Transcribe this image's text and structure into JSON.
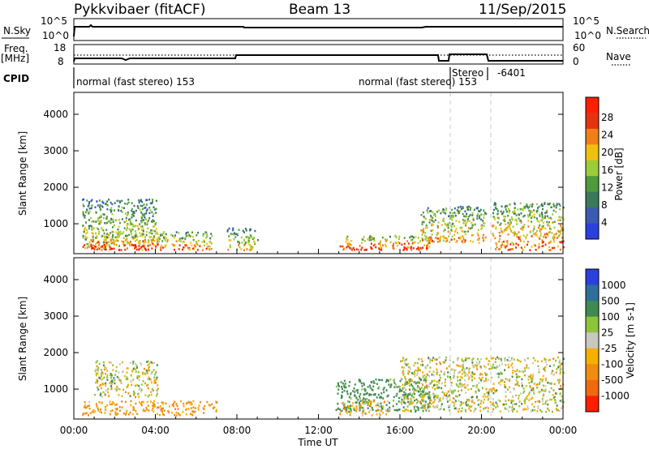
{
  "header": {
    "station": "Pykkvibaer (fitACF)",
    "beam": "Beam 13",
    "date": "11/Sep/2015"
  },
  "strips": {
    "nsky_label": "N.Sky",
    "nsearch_label": "N.Search",
    "noise_ticks_left": [
      "10^5",
      "10^0"
    ],
    "noise_ticks_right": [
      "10^5",
      "10^0"
    ],
    "freq_label": "Freq.",
    "freq_unit": "[MHz]",
    "freq_ticks": [
      "18",
      "8"
    ],
    "nave_label": "Nave",
    "nave_ticks": [
      "60",
      "0"
    ],
    "cpid_label": "CPID",
    "cpid_segments": [
      {
        "label": "normal (fast stereo) 153"
      },
      {
        "label": "normal (fast stereo) 153"
      },
      {
        "label": "Stereo"
      },
      {
        "label": "-6401"
      }
    ]
  },
  "time_axis": {
    "label": "Time UT",
    "ticks": [
      "00:00",
      "04:00",
      "08:00",
      "12:00",
      "16:00",
      "20:00",
      "00:00"
    ],
    "range_hours": [
      0,
      24
    ]
  },
  "colors": {
    "power": [
      "#2b3fe0",
      "#3a5cb0",
      "#3a7a5a",
      "#4e9a3c",
      "#9ccc3a",
      "#f0c010",
      "#f07e1a",
      "#e53310",
      "#ff1f00"
    ],
    "velocity": [
      "#2b3fe0",
      "#2f6e9a",
      "#3f8a52",
      "#8ec43a",
      "#c8c8c0",
      "#f5b000",
      "#f08c10",
      "#ee6a10",
      "#ff1e00"
    ]
  },
  "chart_data": [
    {
      "type": "heatmap",
      "title": "",
      "xlabel": "",
      "ylabel": "Slant Range [km]",
      "xlim": [
        0,
        24
      ],
      "ylim": [
        180,
        4600
      ],
      "yticks": [
        "1000",
        "2000",
        "3000",
        "4000"
      ],
      "colorbar": {
        "label": "Power [dB]",
        "ticks": [
          "4",
          "8",
          "12",
          "16",
          "20",
          "24",
          "28"
        ],
        "range": [
          0,
          30
        ]
      },
      "regions": [
        {
          "t": [
            0.4,
            4.1
          ],
          "r": [
            300,
            1700
          ],
          "level": 0.55
        },
        {
          "t": [
            0.4,
            4.1
          ],
          "r": [
            300,
            700
          ],
          "level": 0.9
        },
        {
          "t": [
            4.1,
            6.8
          ],
          "r": [
            300,
            800
          ],
          "level": 0.7
        },
        {
          "t": [
            7.5,
            9.0
          ],
          "r": [
            300,
            900
          ],
          "level": 0.55
        },
        {
          "t": [
            13.0,
            17.5
          ],
          "r": [
            300,
            700
          ],
          "level": 0.8
        },
        {
          "t": [
            17.0,
            20.2
          ],
          "r": [
            500,
            1500
          ],
          "level": 0.6
        },
        {
          "t": [
            20.5,
            24.0
          ],
          "r": [
            300,
            1600
          ],
          "level": 0.7
        }
      ]
    },
    {
      "type": "heatmap",
      "title": "",
      "xlabel": "Time UT",
      "ylabel": "Slant Range [km]",
      "xlim": [
        0,
        24
      ],
      "ylim": [
        180,
        4600
      ],
      "yticks": [
        "1000",
        "2000",
        "3000",
        "4000"
      ],
      "colorbar": {
        "label": "Velocity [m s-1]",
        "ticks": [
          "1000",
          "500",
          "100",
          "25",
          "-25",
          "-100",
          "-500",
          "-1000"
        ],
        "range": [
          -1200,
          1200
        ]
      },
      "regions": [
        {
          "t": [
            0.4,
            4.1
          ],
          "r": [
            300,
            700
          ],
          "velocity": -150
        },
        {
          "t": [
            1.0,
            4.1
          ],
          "r": [
            800,
            1800
          ],
          "velocity": 0
        },
        {
          "t": [
            4.1,
            7.0
          ],
          "r": [
            300,
            700
          ],
          "velocity": -150
        },
        {
          "t": [
            12.8,
            17.5
          ],
          "r": [
            400,
            1300
          ],
          "velocity": 200
        },
        {
          "t": [
            16.0,
            24.0
          ],
          "r": [
            400,
            1900
          ],
          "velocity": 0
        },
        {
          "t": [
            13.0,
            15.5
          ],
          "r": [
            300,
            700
          ],
          "velocity": -80
        }
      ]
    }
  ]
}
